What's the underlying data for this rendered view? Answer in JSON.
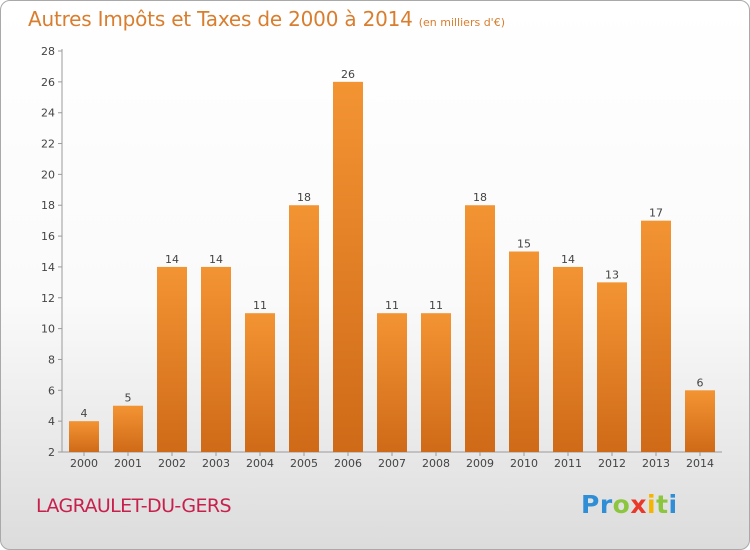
{
  "title": {
    "main": "Autres Impôts et Taxes de 2000 à 2014",
    "sub": "(en milliers d'€)"
  },
  "commune": "LAGRAULET-DU-GERS",
  "logo": {
    "letters": [
      {
        "char": "P",
        "color": "#2f8ed6"
      },
      {
        "char": "r",
        "color": "#2f8ed6"
      },
      {
        "char": "o",
        "color": "#8cc63f"
      },
      {
        "char": "x",
        "color": "#e8392a"
      },
      {
        "char": "i",
        "color": "#f4b400"
      },
      {
        "char": "t",
        "color": "#8cc63f"
      },
      {
        "char": "i",
        "color": "#2f8ed6"
      }
    ]
  },
  "chart_data": {
    "type": "bar",
    "title": "Autres Impôts et Taxes de 2000 à 2014",
    "subtitle": "(en milliers d'€)",
    "categories": [
      "2000",
      "2001",
      "2002",
      "2003",
      "2004",
      "2005",
      "2006",
      "2007",
      "2008",
      "2009",
      "2010",
      "2011",
      "2012",
      "2013",
      "2014"
    ],
    "values": [
      4,
      5,
      14,
      14,
      11,
      18,
      26,
      11,
      11,
      18,
      15,
      14,
      13,
      17,
      6
    ],
    "ylim": [
      2,
      28
    ],
    "yticks": [
      2,
      4,
      6,
      8,
      10,
      12,
      14,
      16,
      18,
      20,
      22,
      24,
      26,
      28
    ],
    "grid": false,
    "bar_color": "#f39433",
    "bar_color_dark": "#cf6a18"
  }
}
